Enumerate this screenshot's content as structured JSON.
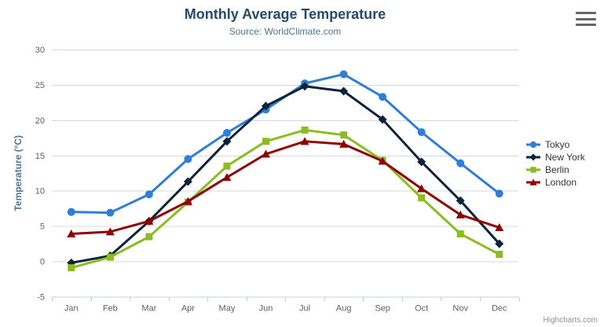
{
  "header": {
    "title": "Monthly Average Temperature",
    "subtitle": "Source: WorldClimate.com"
  },
  "chart_data": {
    "type": "line",
    "title": "Monthly Average Temperature",
    "subtitle": "Source: WorldClimate.com",
    "categories": [
      "Jan",
      "Feb",
      "Mar",
      "Apr",
      "May",
      "Jun",
      "Jul",
      "Aug",
      "Sep",
      "Oct",
      "Nov",
      "Dec"
    ],
    "series": [
      {
        "name": "Tokyo",
        "color": "#2f7ed8",
        "marker": "circle",
        "values": [
          7.0,
          6.9,
          9.5,
          14.5,
          18.2,
          21.5,
          25.2,
          26.5,
          23.3,
          18.3,
          13.9,
          9.6
        ]
      },
      {
        "name": "New York",
        "color": "#0d233a",
        "marker": "diamond",
        "values": [
          -0.2,
          0.8,
          5.7,
          11.3,
          17.0,
          22.0,
          24.8,
          24.1,
          20.1,
          14.1,
          8.6,
          2.5
        ]
      },
      {
        "name": "Berlin",
        "color": "#8bbc21",
        "marker": "square",
        "values": [
          -0.9,
          0.6,
          3.5,
          8.4,
          13.5,
          17.0,
          18.6,
          17.9,
          14.3,
          9.0,
          3.9,
          1.0
        ]
      },
      {
        "name": "London",
        "color": "#910000",
        "marker": "triangle",
        "values": [
          3.9,
          4.2,
          5.7,
          8.5,
          11.9,
          15.2,
          17.0,
          16.6,
          14.2,
          10.3,
          6.6,
          4.8
        ]
      }
    ],
    "xlabel": "",
    "ylabel": "Temperature (°C)",
    "ylim": [
      -5,
      30
    ],
    "yticks": [
      -5,
      0,
      5,
      10,
      15,
      20,
      25,
      30
    ],
    "grid": true,
    "legend_position": "right"
  },
  "credits": {
    "label": "Highcharts.com"
  },
  "colors": {
    "title": "#274b6d",
    "subtitle": "#4d759e",
    "axis_title": "#4d759e",
    "tick_label": "#606060",
    "grid_line": "#d8d8d8",
    "axis_line": "#c0d0e0",
    "legend_text": "#333333",
    "credits": "#909090",
    "background": "#ffffff"
  }
}
